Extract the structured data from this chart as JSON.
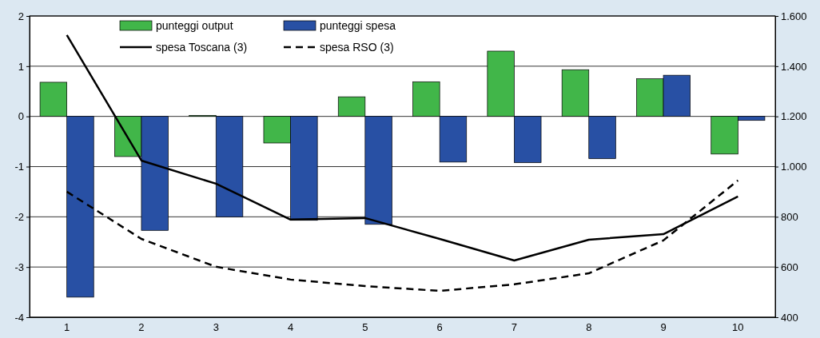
{
  "chart_data": {
    "type": "bar",
    "categories": [
      "1",
      "2",
      "3",
      "4",
      "5",
      "6",
      "7",
      "8",
      "9",
      "10"
    ],
    "series": [
      {
        "name": "punteggi output",
        "color": "#41b649",
        "values": [
          0.68,
          -0.8,
          0.02,
          -0.53,
          0.39,
          0.69,
          1.3,
          0.93,
          0.75,
          -0.75
        ]
      },
      {
        "name": "punteggi spesa",
        "color": "#2850a4",
        "values": [
          -3.6,
          -2.27,
          -2.0,
          -2.07,
          -2.15,
          -0.91,
          -0.92,
          -0.84,
          0.82,
          -0.08
        ]
      },
      {
        "name": "spesa Toscana (3)",
        "type": "line",
        "axis": "y2",
        "color": "#000000",
        "line_style": "solid",
        "values": [
          1524,
          1024,
          932,
          789,
          795,
          712,
          626,
          709,
          731,
          881
        ]
      },
      {
        "name": "spesa RSO (3)",
        "type": "line",
        "axis": "y2",
        "color": "#000000",
        "line_style": "dashed",
        "values": [
          900,
          712,
          601,
          550,
          524,
          505,
          531,
          575,
          706,
          945
        ]
      }
    ],
    "ylim": [
      -4,
      2
    ],
    "yticks": [
      -4,
      -3,
      -2,
      -1,
      0,
      1,
      2
    ],
    "y2lim": [
      400,
      1600
    ],
    "y2ticks": [
      {
        "value": 400,
        "label": "400"
      },
      {
        "value": 600,
        "label": "600"
      },
      {
        "value": 800,
        "label": "800"
      },
      {
        "value": 1000,
        "label": "1.000"
      },
      {
        "value": 1200,
        "label": "1.200"
      },
      {
        "value": 1400,
        "label": "1.400"
      },
      {
        "value": 1600,
        "label": "1.600"
      }
    ],
    "grid": "y",
    "legend": "top",
    "marker": "none"
  }
}
